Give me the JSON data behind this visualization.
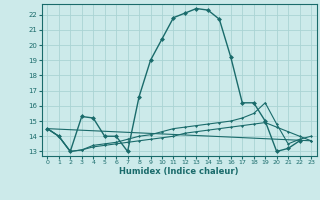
{
  "xlabel": "Humidex (Indice chaleur)",
  "background_color": "#cceaea",
  "grid_color": "#aad4d4",
  "line_color": "#1a6b6b",
  "xlim": [
    -0.5,
    23.5
  ],
  "ylim": [
    12.7,
    22.7
  ],
  "yticks": [
    13,
    14,
    15,
    16,
    17,
    18,
    19,
    20,
    21,
    22
  ],
  "xticks": [
    0,
    1,
    2,
    3,
    4,
    5,
    6,
    7,
    8,
    9,
    10,
    11,
    12,
    13,
    14,
    15,
    16,
    17,
    18,
    19,
    20,
    21,
    22,
    23
  ],
  "line_main": {
    "x": [
      0,
      1,
      2,
      3,
      4,
      5,
      6,
      7,
      8,
      9,
      10,
      11,
      12,
      13,
      14,
      15,
      16,
      17,
      18,
      19,
      20,
      21,
      22
    ],
    "y": [
      14.5,
      14.0,
      13.0,
      15.3,
      15.2,
      14.0,
      14.0,
      13.0,
      16.6,
      19.0,
      20.4,
      21.8,
      22.1,
      22.4,
      22.3,
      21.7,
      19.2,
      16.2,
      16.2,
      15.0,
      13.0,
      13.2,
      13.7
    ]
  },
  "line2": {
    "x": [
      0,
      1,
      2,
      3,
      4,
      5,
      6,
      7,
      8,
      9,
      10,
      11,
      12,
      13,
      14,
      15,
      16,
      17,
      18,
      19,
      20,
      21,
      22,
      23
    ],
    "y": [
      14.5,
      14.0,
      13.0,
      13.1,
      13.3,
      13.4,
      13.5,
      13.6,
      13.7,
      13.8,
      13.9,
      14.0,
      14.2,
      14.3,
      14.4,
      14.5,
      14.6,
      14.7,
      14.8,
      14.9,
      14.6,
      14.3,
      14.0,
      13.7
    ]
  },
  "line3": {
    "x": [
      0,
      1,
      2,
      3,
      4,
      5,
      6,
      7,
      8,
      9,
      10,
      11,
      12,
      13,
      14,
      15,
      16,
      17,
      18,
      19,
      20,
      21,
      22,
      23
    ],
    "y": [
      14.5,
      14.0,
      13.0,
      13.1,
      13.4,
      13.5,
      13.6,
      13.8,
      14.0,
      14.1,
      14.3,
      14.5,
      14.6,
      14.7,
      14.8,
      14.9,
      15.0,
      15.2,
      15.5,
      16.2,
      14.8,
      13.5,
      13.8,
      14.0
    ]
  },
  "line4": {
    "x": [
      0,
      23
    ],
    "y": [
      14.5,
      13.7
    ]
  }
}
